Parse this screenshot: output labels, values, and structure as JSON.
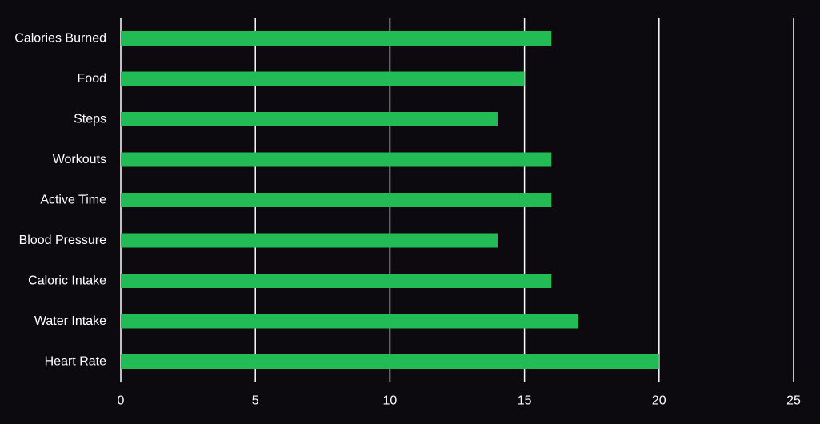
{
  "colors": {
    "background": "#0c0a0f",
    "bar": "#22bb55",
    "grid": "#ffffff",
    "text": "#ffffff"
  },
  "chart_data": {
    "type": "bar",
    "orientation": "horizontal",
    "categories": [
      "Calories Burned",
      "Food",
      "Steps",
      "Workouts",
      "Active Time",
      "Blood Pressure",
      "Caloric Intake",
      "Water Intake",
      "Heart Rate"
    ],
    "values": [
      16,
      15,
      14,
      16,
      16,
      14,
      16,
      17,
      20
    ],
    "xlim": [
      0,
      25
    ],
    "xticks": [
      "0",
      "5",
      "10",
      "15",
      "20",
      "25"
    ],
    "grid": "vertical",
    "legend": "none"
  }
}
